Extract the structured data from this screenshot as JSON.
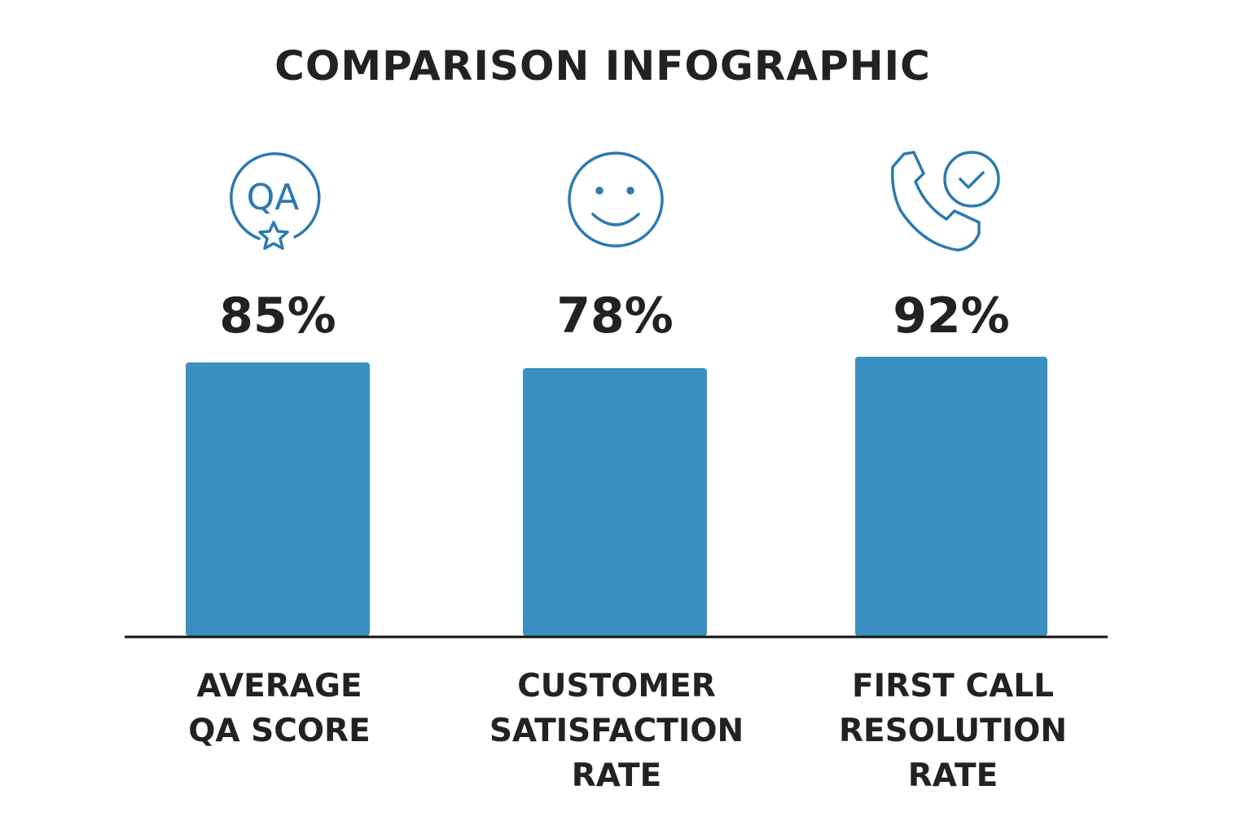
{
  "chart_data": {
    "type": "bar",
    "title": "COMPARISON INFOGRAPHIC",
    "categories": [
      "AVERAGE QA SCORE",
      "CUSTOMER SATISFACTION RATE",
      "FIRST CALL RESOLUTION RATE"
    ],
    "category_lines": [
      [
        "AVERAGE",
        "QA SCORE"
      ],
      [
        "CUSTOMER",
        "SATISFACTION",
        "RATE"
      ],
      [
        "FIRST CALL",
        "RESOLUTION",
        "RATE"
      ]
    ],
    "values": [
      85,
      78,
      92
    ],
    "value_labels": [
      "85%",
      "78%",
      "92%"
    ],
    "icons": [
      "qa-star-icon",
      "smiley-face-icon",
      "phone-check-icon"
    ],
    "icon_text": "QA",
    "bar_color": "#3A91C1",
    "icon_color": "#2B7AB0",
    "grid": false,
    "legend": "none"
  }
}
